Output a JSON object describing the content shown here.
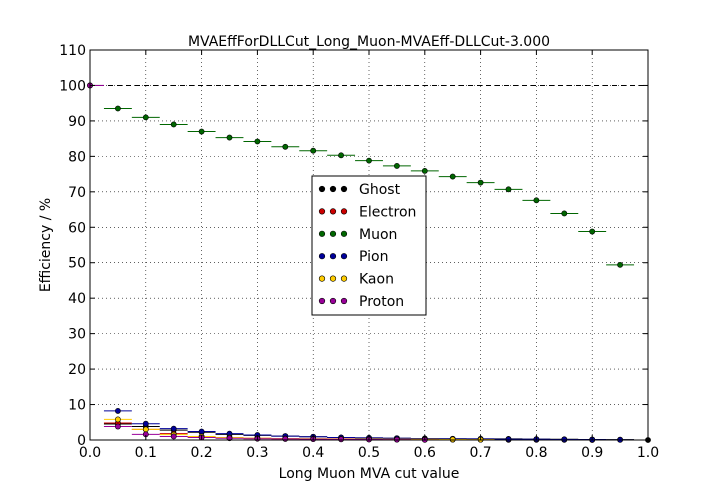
{
  "chart_data": {
    "type": "scatter",
    "title": "MVAEffForDLLCut_Long_Muon-MVAEff-DLLCut-3.000",
    "xlabel": "Long Muon MVA cut value",
    "ylabel": "Efficiency / %",
    "xlim": [
      0.0,
      1.0
    ],
    "ylim": [
      0,
      110
    ],
    "xticks": [
      "0.0",
      "0.1",
      "0.2",
      "0.3",
      "0.4",
      "0.5",
      "0.6",
      "0.7",
      "0.8",
      "0.9",
      "1.0"
    ],
    "yticks": [
      "0",
      "10",
      "20",
      "30",
      "40",
      "50",
      "60",
      "70",
      "80",
      "90",
      "100",
      "110"
    ],
    "grid": true,
    "reference_line": 100,
    "legend_position": "center",
    "series": [
      {
        "name": "Ghost",
        "color": "#000000",
        "x": [
          0.0,
          0.05,
          0.1,
          0.15,
          0.2,
          0.25,
          0.3,
          0.35,
          0.4,
          0.45,
          0.5,
          0.55,
          0.6,
          0.65,
          0.7,
          0.75,
          0.8,
          0.85,
          0.9,
          0.95,
          1.0
        ],
        "y": [
          100,
          4.5,
          3.8,
          2.8,
          2.2,
          1.6,
          1.3,
          1.1,
          0.9,
          0.7,
          0.6,
          0.5,
          0.4,
          0.35,
          0.3,
          0.3,
          0.25,
          0.2,
          0.15,
          0.1,
          0.0
        ]
      },
      {
        "name": "Electron",
        "color": "#cc0000",
        "x": [
          0.05,
          0.1,
          0.15,
          0.2,
          0.25,
          0.3,
          0.35,
          0.4,
          0.45,
          0.5,
          0.55,
          0.6,
          0.65,
          0.7,
          0.75,
          0.8,
          0.85,
          0.9
        ],
        "y": [
          4.8,
          3.0,
          1.8,
          1.0,
          0.7,
          0.5,
          0.4,
          0.3,
          0.3,
          0.2,
          0.2,
          0.15,
          0.1,
          0.1,
          0.05,
          0.05,
          0.05,
          0.0
        ]
      },
      {
        "name": "Muon",
        "color": "#006600",
        "x": [
          0.05,
          0.1,
          0.15,
          0.2,
          0.25,
          0.3,
          0.35,
          0.4,
          0.45,
          0.5,
          0.55,
          0.6,
          0.65,
          0.7,
          0.75,
          0.8,
          0.85,
          0.9,
          0.95
        ],
        "y": [
          93.5,
          91.0,
          89.0,
          87.0,
          85.3,
          84.2,
          82.7,
          81.6,
          80.3,
          78.8,
          77.3,
          75.9,
          74.3,
          72.6,
          70.7,
          67.6,
          63.9,
          58.8,
          49.4
        ]
      },
      {
        "name": "Pion",
        "color": "#000099",
        "x": [
          0.05,
          0.1,
          0.15,
          0.2,
          0.25,
          0.3,
          0.35,
          0.4,
          0.45,
          0.5,
          0.55,
          0.6,
          0.65,
          0.7,
          0.75,
          0.8,
          0.85,
          0.9,
          0.95
        ],
        "y": [
          8.2,
          4.6,
          3.2,
          2.4,
          1.8,
          1.4,
          1.1,
          0.9,
          0.7,
          0.6,
          0.5,
          0.4,
          0.3,
          0.3,
          0.2,
          0.2,
          0.15,
          0.1,
          0.05
        ]
      },
      {
        "name": "Kaon",
        "color": "#ffcc00",
        "x": [
          0.05,
          0.1,
          0.15,
          0.2,
          0.25,
          0.3,
          0.35,
          0.4,
          0.45,
          0.5,
          0.55,
          0.6,
          0.65,
          0.7
        ],
        "y": [
          5.8,
          3.0,
          1.5,
          1.0,
          0.7,
          0.5,
          0.4,
          0.35,
          0.3,
          0.25,
          0.2,
          0.2,
          0.15,
          0.1
        ]
      },
      {
        "name": "Proton",
        "color": "#990099",
        "x": [
          0.0,
          0.05,
          0.1,
          0.15,
          0.2,
          0.25,
          0.3,
          0.35,
          0.4,
          0.45,
          0.5,
          0.55,
          0.6
        ],
        "y": [
          100,
          3.8,
          1.6,
          1.0,
          0.7,
          0.5,
          0.35,
          0.3,
          0.25,
          0.2,
          0.15,
          0.1,
          0.05
        ]
      }
    ]
  }
}
